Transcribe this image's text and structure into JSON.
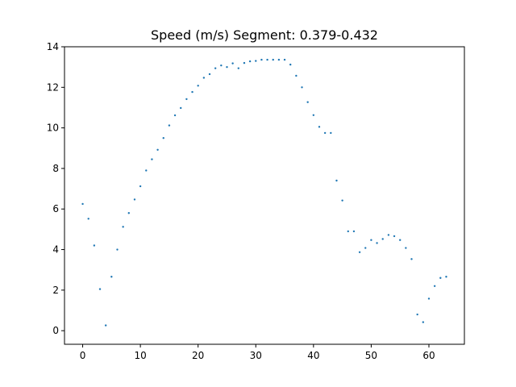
{
  "chart_data": {
    "type": "scatter",
    "title": "Speed (m/s) Segment: 0.379-0.432",
    "xlabel": "",
    "ylabel": "",
    "xlim": [
      -3.15,
      66.15
    ],
    "ylim": [
      -0.67,
      14.0
    ],
    "xticks": [
      0,
      10,
      20,
      30,
      40,
      50,
      60
    ],
    "yticks": [
      0,
      2,
      4,
      6,
      8,
      10,
      12,
      14
    ],
    "grid": false,
    "color": "#1f77b4",
    "series": [
      {
        "x": [
          0,
          1,
          2,
          3,
          4,
          5,
          6,
          7,
          8,
          9,
          10,
          11,
          12,
          13,
          14,
          15,
          16,
          17,
          18,
          19,
          20,
          21,
          22,
          23,
          24,
          25,
          26,
          27,
          28,
          29,
          30,
          31,
          32,
          33,
          34,
          35,
          36,
          37,
          38,
          39,
          40,
          41,
          42,
          43,
          44,
          45,
          46,
          47,
          48,
          49,
          50,
          51,
          52,
          53,
          54,
          55,
          56,
          57,
          58,
          59,
          60,
          61,
          62,
          63
        ],
        "y": [
          6.25,
          5.52,
          4.2,
          2.05,
          0.26,
          2.66,
          4.0,
          5.12,
          5.8,
          6.47,
          7.12,
          7.9,
          8.45,
          8.92,
          9.5,
          10.12,
          10.62,
          10.98,
          11.42,
          11.77,
          12.08,
          12.47,
          12.65,
          12.94,
          13.08,
          13.0,
          13.18,
          12.94,
          13.2,
          13.28,
          13.3,
          13.36,
          13.36,
          13.36,
          13.36,
          13.36,
          13.12,
          12.57,
          12.0,
          11.27,
          10.63,
          10.05,
          9.75,
          9.75,
          7.4,
          6.42,
          4.9,
          4.9,
          3.87,
          4.08,
          4.47,
          4.32,
          4.52,
          4.72,
          4.66,
          4.47,
          4.08,
          3.53,
          0.8,
          0.42,
          1.58,
          2.2,
          2.6,
          2.66
        ]
      }
    ]
  }
}
